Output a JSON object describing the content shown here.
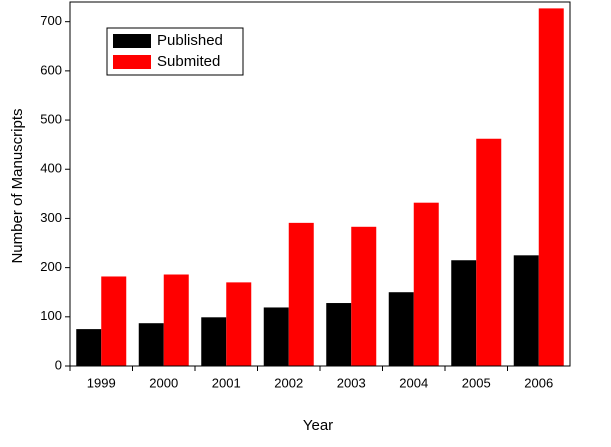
{
  "chart_data": {
    "type": "bar",
    "x_label": "Year",
    "y_label": "Number of Manuscripts",
    "categories": [
      "1999",
      "2000",
      "2001",
      "2002",
      "2003",
      "2004",
      "2005",
      "2006"
    ],
    "series": [
      {
        "name": "Published",
        "color": "#000000",
        "values": [
          75,
          87,
          99,
          119,
          128,
          150,
          215,
          225
        ]
      },
      {
        "name": "Submited",
        "color": "#ff0000",
        "values": [
          182,
          186,
          170,
          291,
          283,
          332,
          462,
          727
        ]
      }
    ],
    "ylim": [
      0,
      740
    ],
    "yticks": [
      0,
      100,
      200,
      300,
      400,
      500,
      600,
      700
    ],
    "legend": "top-left"
  }
}
